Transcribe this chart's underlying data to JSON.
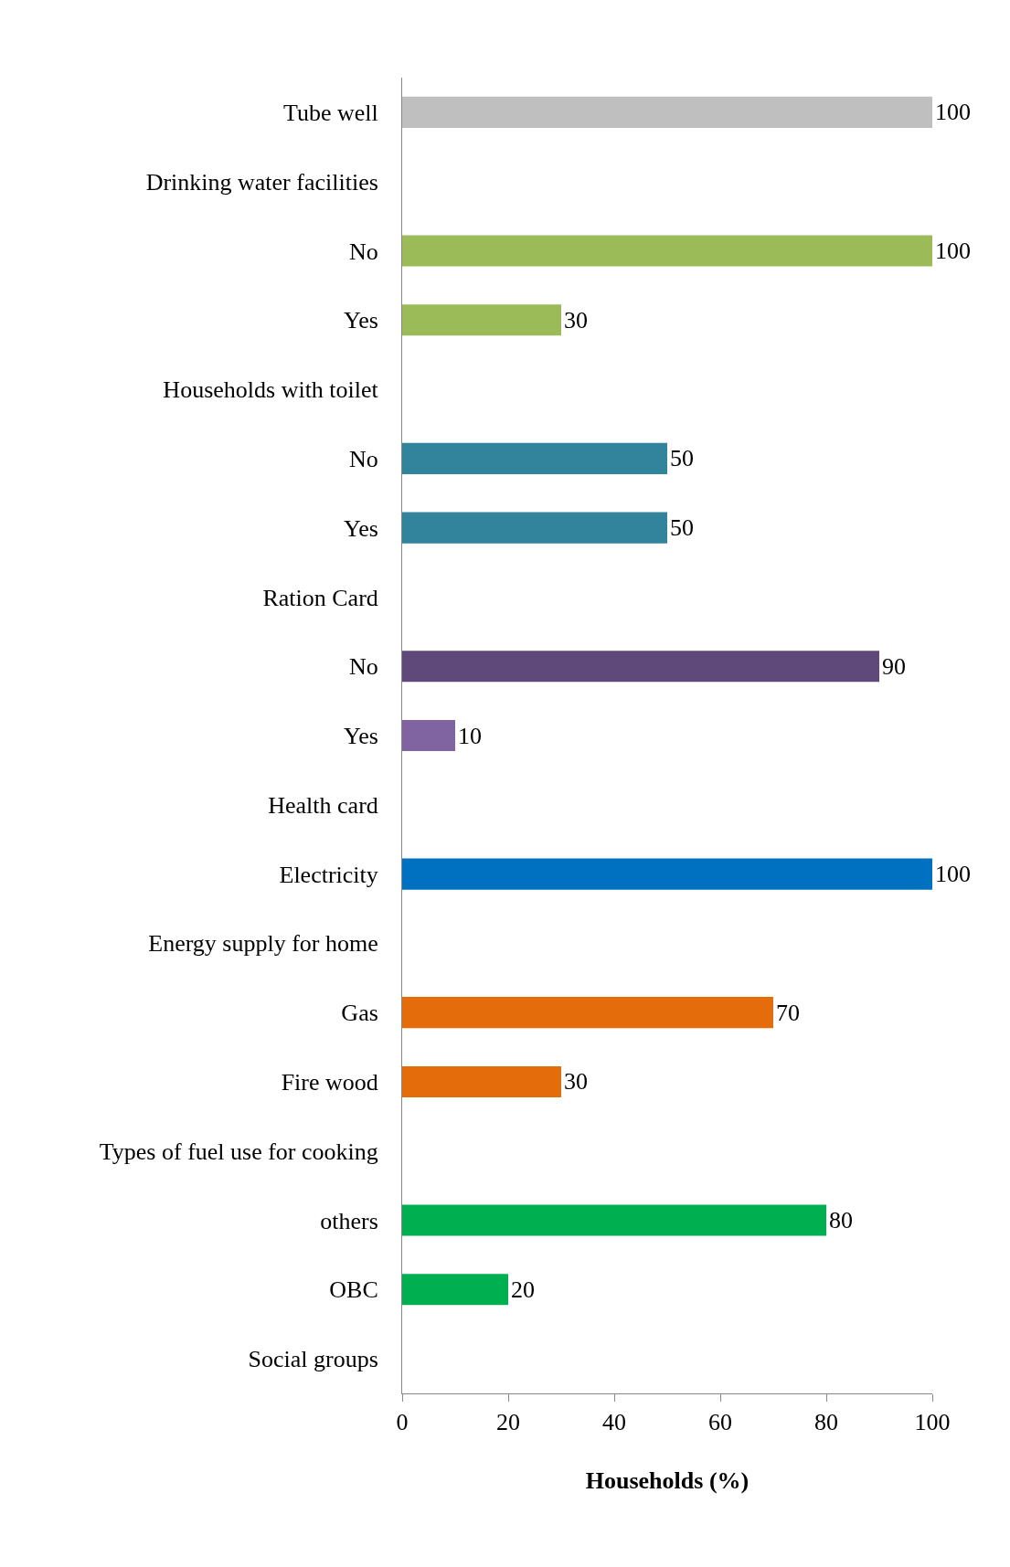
{
  "chart_data": {
    "type": "bar",
    "orientation": "horizontal",
    "xlabel": "Households (%)",
    "categories": [
      "Tube well",
      "Drinking water facilities",
      "No",
      "Yes",
      "Households with toilet",
      "No",
      "Yes",
      "Ration Card",
      "No",
      "Yes",
      "Health card",
      "Electricity",
      "Energy supply for home",
      "Gas",
      "Fire wood",
      "Types of fuel use for cooking",
      "others",
      "OBC",
      "Social groups"
    ],
    "values": [
      100,
      null,
      100,
      30,
      null,
      50,
      50,
      null,
      90,
      10,
      null,
      100,
      null,
      70,
      30,
      null,
      80,
      20,
      null
    ],
    "colors": [
      "#bfbfbf",
      "#9bbb59",
      "#9bbb59",
      "#9bbb59",
      "#31849b",
      "#31849b",
      "#31849b",
      "#5f497a",
      "#5f497a",
      "#8064a2",
      "#0070c0",
      "#0070c0",
      "#e46c0a",
      "#e46c0a",
      "#e46c0a",
      "#00b050",
      "#00b050",
      "#00b050",
      "#00b050"
    ],
    "xlim": [
      0,
      100
    ],
    "xticks": [
      0,
      20,
      40,
      60,
      80,
      100
    ],
    "data_labels": true,
    "grid": false,
    "legend": false
  }
}
